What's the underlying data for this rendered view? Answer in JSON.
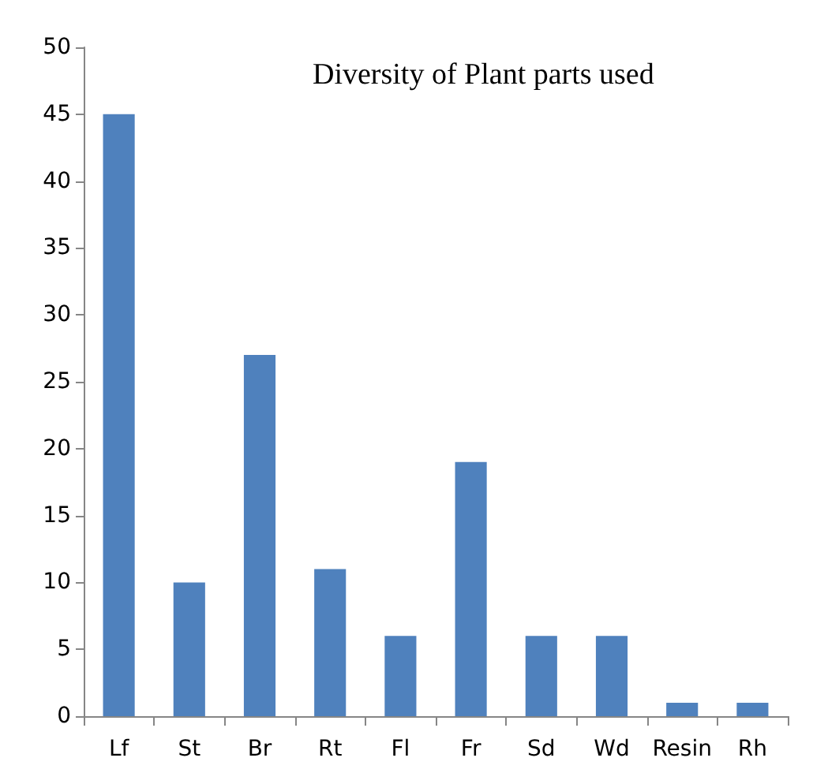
{
  "chart_data": {
    "type": "bar",
    "title": "Diversity of Plant parts used",
    "categories": [
      "Lf",
      "St",
      "Br",
      "Rt",
      "Fl",
      "Fr",
      "Sd",
      "Wd",
      "Resin",
      "Rh"
    ],
    "values": [
      45,
      10,
      27,
      11,
      6,
      19,
      6,
      6,
      1,
      1
    ],
    "color": "#4f81bd",
    "ylim": [
      0,
      50
    ],
    "yticks": [
      0,
      5,
      10,
      15,
      20,
      25,
      30,
      35,
      40,
      45,
      50
    ],
    "grid": false
  }
}
